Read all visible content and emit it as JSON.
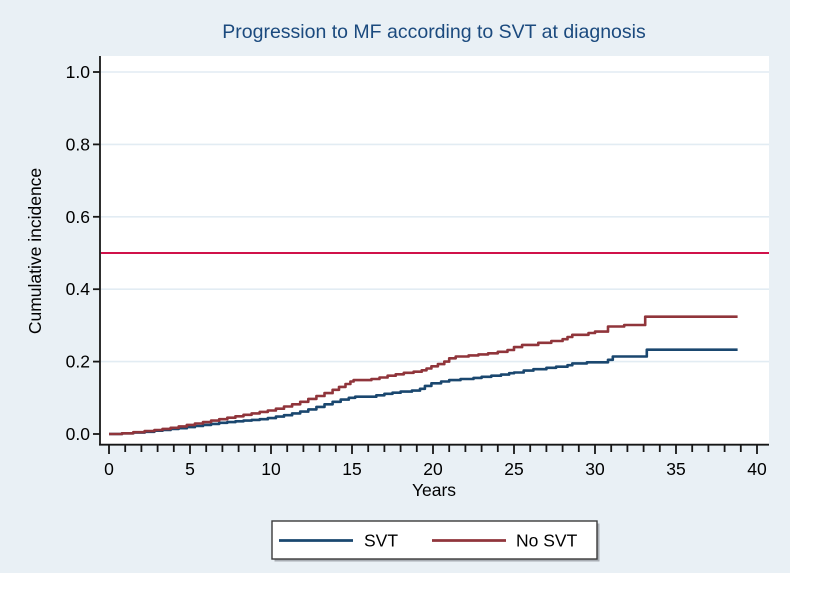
{
  "figure": {
    "region_bg": "#e9f0f5",
    "plot_bg": "#ffffff",
    "grid_color": "#e2ecf3",
    "axis_color": "#161616",
    "title_color": "#1b4a7e",
    "legend_border": "#3a3a3a",
    "legend_shadow": "#a8adb3"
  },
  "chart_data": {
    "type": "line",
    "subtype": "step-cumulative-incidence",
    "title": "Progression to MF according to SVT at diagnosis",
    "xlabel": "Years",
    "ylabel": "Cumulative incidence",
    "xlim": [
      0,
      40
    ],
    "ylim": [
      0.0,
      1.0
    ],
    "grid": true,
    "legend_position": "bottom",
    "x_major_ticks": [
      0,
      5,
      10,
      15,
      20,
      25,
      30,
      35,
      40
    ],
    "x_minor_tick_interval": 1,
    "y_ticks": [
      0.0,
      0.2,
      0.4,
      0.6,
      0.8,
      1.0
    ],
    "y_tick_labels": [
      "0.0",
      "0.2",
      "0.4",
      "0.6",
      "0.8",
      "1.0"
    ],
    "reference_line": {
      "y": 0.5,
      "color": "#d0114a"
    },
    "end_year": 38.8,
    "series": [
      {
        "name": "SVT",
        "color": "#1a476f",
        "points": [
          [
            0,
            0.0
          ],
          [
            0.8,
            0.002
          ],
          [
            1.5,
            0.004
          ],
          [
            2.2,
            0.006
          ],
          [
            2.8,
            0.009
          ],
          [
            3.3,
            0.011
          ],
          [
            3.8,
            0.014
          ],
          [
            4.3,
            0.016
          ],
          [
            4.8,
            0.019
          ],
          [
            5.3,
            0.022
          ],
          [
            5.8,
            0.025
          ],
          [
            6.3,
            0.028
          ],
          [
            6.8,
            0.031
          ],
          [
            7.3,
            0.033
          ],
          [
            7.8,
            0.035
          ],
          [
            8.3,
            0.037
          ],
          [
            8.8,
            0.039
          ],
          [
            9.3,
            0.041
          ],
          [
            9.8,
            0.044
          ],
          [
            10.3,
            0.048
          ],
          [
            10.8,
            0.052
          ],
          [
            11.3,
            0.057
          ],
          [
            11.8,
            0.062
          ],
          [
            12.3,
            0.068
          ],
          [
            12.8,
            0.075
          ],
          [
            13.3,
            0.082
          ],
          [
            13.8,
            0.089
          ],
          [
            14.3,
            0.095
          ],
          [
            14.8,
            0.1
          ],
          [
            15.2,
            0.103
          ],
          [
            16.5,
            0.107
          ],
          [
            17.0,
            0.111
          ],
          [
            17.5,
            0.114
          ],
          [
            18.0,
            0.117
          ],
          [
            18.7,
            0.12
          ],
          [
            19.2,
            0.125
          ],
          [
            19.5,
            0.133
          ],
          [
            19.9,
            0.14
          ],
          [
            20.5,
            0.145
          ],
          [
            21.0,
            0.149
          ],
          [
            21.7,
            0.152
          ],
          [
            22.5,
            0.155
          ],
          [
            23.0,
            0.158
          ],
          [
            23.6,
            0.161
          ],
          [
            24.2,
            0.164
          ],
          [
            24.7,
            0.168
          ],
          [
            25.0,
            0.17
          ],
          [
            25.6,
            0.175
          ],
          [
            26.2,
            0.179
          ],
          [
            27.0,
            0.183
          ],
          [
            27.6,
            0.186
          ],
          [
            28.3,
            0.19
          ],
          [
            28.6,
            0.195
          ],
          [
            29.5,
            0.198
          ],
          [
            30.8,
            0.205
          ],
          [
            31.1,
            0.214
          ],
          [
            33.2,
            0.233
          ]
        ]
      },
      {
        "name": "No SVT",
        "color": "#90353b",
        "points": [
          [
            0,
            0.0
          ],
          [
            0.8,
            0.002
          ],
          [
            1.5,
            0.005
          ],
          [
            2.2,
            0.008
          ],
          [
            2.8,
            0.011
          ],
          [
            3.3,
            0.014
          ],
          [
            3.8,
            0.017
          ],
          [
            4.3,
            0.021
          ],
          [
            4.8,
            0.025
          ],
          [
            5.3,
            0.029
          ],
          [
            5.8,
            0.033
          ],
          [
            6.3,
            0.037
          ],
          [
            6.8,
            0.041
          ],
          [
            7.3,
            0.045
          ],
          [
            7.8,
            0.049
          ],
          [
            8.3,
            0.053
          ],
          [
            8.8,
            0.057
          ],
          [
            9.3,
            0.061
          ],
          [
            9.8,
            0.065
          ],
          [
            10.3,
            0.07
          ],
          [
            10.8,
            0.076
          ],
          [
            11.3,
            0.082
          ],
          [
            11.8,
            0.089
          ],
          [
            12.3,
            0.097
          ],
          [
            12.8,
            0.105
          ],
          [
            13.3,
            0.113
          ],
          [
            13.8,
            0.122
          ],
          [
            14.2,
            0.13
          ],
          [
            14.6,
            0.138
          ],
          [
            14.9,
            0.145
          ],
          [
            15.1,
            0.149
          ],
          [
            16.2,
            0.152
          ],
          [
            16.7,
            0.156
          ],
          [
            17.2,
            0.161
          ],
          [
            17.7,
            0.165
          ],
          [
            18.2,
            0.169
          ],
          [
            18.8,
            0.172
          ],
          [
            19.3,
            0.176
          ],
          [
            19.6,
            0.181
          ],
          [
            19.9,
            0.187
          ],
          [
            20.3,
            0.193
          ],
          [
            20.7,
            0.2
          ],
          [
            21.0,
            0.209
          ],
          [
            21.4,
            0.214
          ],
          [
            22.2,
            0.217
          ],
          [
            22.8,
            0.22
          ],
          [
            23.4,
            0.223
          ],
          [
            24.0,
            0.227
          ],
          [
            24.6,
            0.232
          ],
          [
            25.0,
            0.24
          ],
          [
            25.5,
            0.246
          ],
          [
            26.5,
            0.252
          ],
          [
            27.3,
            0.257
          ],
          [
            28.0,
            0.262
          ],
          [
            28.3,
            0.268
          ],
          [
            28.6,
            0.274
          ],
          [
            29.6,
            0.279
          ],
          [
            30.0,
            0.283
          ],
          [
            30.8,
            0.297
          ],
          [
            31.8,
            0.301
          ],
          [
            33.1,
            0.324
          ]
        ]
      }
    ]
  }
}
